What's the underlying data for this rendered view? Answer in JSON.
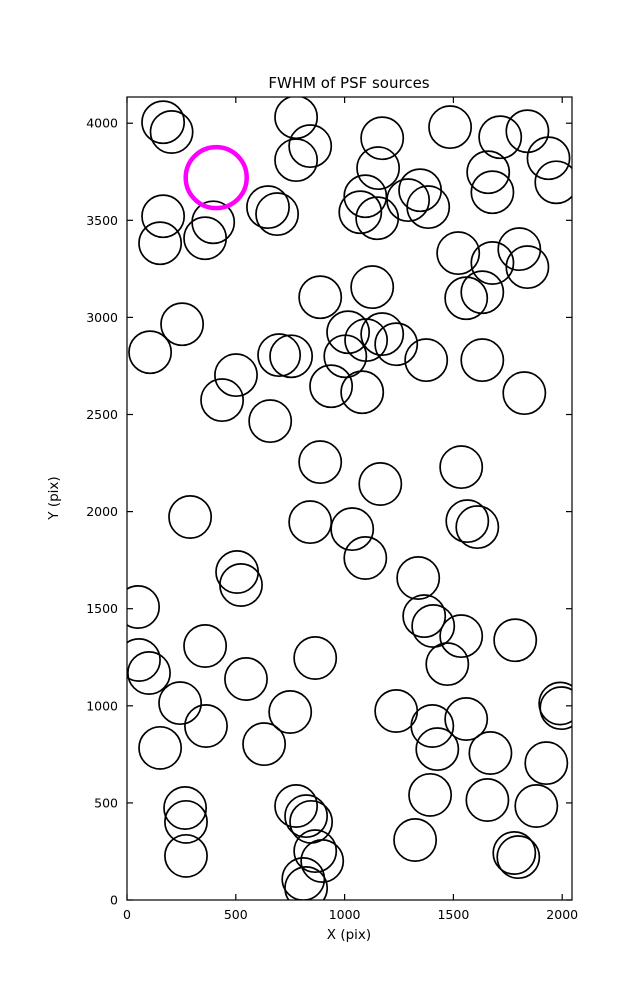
{
  "chart_data": {
    "type": "scatter",
    "title": "FWHM of PSF sources",
    "xlabel": "X (pix)",
    "ylabel": "Y (pix)",
    "xlim": [
      0,
      2045
    ],
    "ylim": [
      0,
      4135
    ],
    "xticks": [
      0,
      500,
      1000,
      1500,
      2000
    ],
    "yticks": [
      0,
      500,
      1000,
      1500,
      2000,
      2500,
      3000,
      3500,
      4000
    ],
    "grid": false,
    "legend": "none",
    "marker": "open-circle",
    "default_radius": 97,
    "colors": {
      "normal": "#000000",
      "highlight": "#ff00ff",
      "background": "#ffffff"
    },
    "highlight_point": {
      "x": 410,
      "y": 3720,
      "r": 140
    },
    "points": [
      {
        "x": 166,
        "y": 4005
      },
      {
        "x": 205,
        "y": 3955
      },
      {
        "x": 777,
        "y": 4031
      },
      {
        "x": 842,
        "y": 3882
      },
      {
        "x": 1173,
        "y": 3923
      },
      {
        "x": 1485,
        "y": 3980
      },
      {
        "x": 1715,
        "y": 3928
      },
      {
        "x": 1840,
        "y": 3959
      },
      {
        "x": 1937,
        "y": 3820
      },
      {
        "x": 777,
        "y": 3810
      },
      {
        "x": 1154,
        "y": 3769
      },
      {
        "x": 1347,
        "y": 3655
      },
      {
        "x": 1095,
        "y": 3624
      },
      {
        "x": 1660,
        "y": 3748
      },
      {
        "x": 1679,
        "y": 3645
      },
      {
        "x": 1973,
        "y": 3696
      },
      {
        "x": 648,
        "y": 3568
      },
      {
        "x": 690,
        "y": 3532
      },
      {
        "x": 166,
        "y": 3521
      },
      {
        "x": 396,
        "y": 3490
      },
      {
        "x": 152,
        "y": 3382
      },
      {
        "x": 359,
        "y": 3408
      },
      {
        "x": 1072,
        "y": 3542
      },
      {
        "x": 1150,
        "y": 3511
      },
      {
        "x": 1292,
        "y": 3604
      },
      {
        "x": 1384,
        "y": 3568
      },
      {
        "x": 1522,
        "y": 3331
      },
      {
        "x": 1679,
        "y": 3280
      },
      {
        "x": 1803,
        "y": 3352
      },
      {
        "x": 1840,
        "y": 3259
      },
      {
        "x": 1559,
        "y": 3099
      },
      {
        "x": 1633,
        "y": 3130
      },
      {
        "x": 888,
        "y": 3104
      },
      {
        "x": 1127,
        "y": 3156
      },
      {
        "x": 253,
        "y": 2965
      },
      {
        "x": 106,
        "y": 2821
      },
      {
        "x": 1016,
        "y": 2924
      },
      {
        "x": 1099,
        "y": 2883
      },
      {
        "x": 1173,
        "y": 2914
      },
      {
        "x": 1237,
        "y": 2862
      },
      {
        "x": 1003,
        "y": 2800
      },
      {
        "x": 699,
        "y": 2806
      },
      {
        "x": 754,
        "y": 2800
      },
      {
        "x": 501,
        "y": 2703
      },
      {
        "x": 1375,
        "y": 2780
      },
      {
        "x": 1633,
        "y": 2780
      },
      {
        "x": 938,
        "y": 2646
      },
      {
        "x": 1081,
        "y": 2615
      },
      {
        "x": 437,
        "y": 2574
      },
      {
        "x": 1826,
        "y": 2610
      },
      {
        "x": 658,
        "y": 2466
      },
      {
        "x": 888,
        "y": 2255
      },
      {
        "x": 1536,
        "y": 2229
      },
      {
        "x": 1164,
        "y": 2142
      },
      {
        "x": 290,
        "y": 1972
      },
      {
        "x": 842,
        "y": 1946
      },
      {
        "x": 1035,
        "y": 1910
      },
      {
        "x": 1564,
        "y": 1951
      },
      {
        "x": 1610,
        "y": 1920
      },
      {
        "x": 1095,
        "y": 1761
      },
      {
        "x": 506,
        "y": 1689
      },
      {
        "x": 524,
        "y": 1622
      },
      {
        "x": 1338,
        "y": 1658
      },
      {
        "x": 51,
        "y": 1509
      },
      {
        "x": 1366,
        "y": 1462
      },
      {
        "x": 1407,
        "y": 1411
      },
      {
        "x": 1536,
        "y": 1359
      },
      {
        "x": 359,
        "y": 1308
      },
      {
        "x": 1784,
        "y": 1338
      },
      {
        "x": 865,
        "y": 1246
      },
      {
        "x": 55,
        "y": 1236
      },
      {
        "x": 101,
        "y": 1169
      },
      {
        "x": 1472,
        "y": 1215
      },
      {
        "x": 547,
        "y": 1138
      },
      {
        "x": 244,
        "y": 1014
      },
      {
        "x": 750,
        "y": 968
      },
      {
        "x": 1237,
        "y": 973
      },
      {
        "x": 1403,
        "y": 896
      },
      {
        "x": 1991,
        "y": 1012
      },
      {
        "x": 1996,
        "y": 988
      },
      {
        "x": 1559,
        "y": 932
      },
      {
        "x": 363,
        "y": 896
      },
      {
        "x": 630,
        "y": 803
      },
      {
        "x": 152,
        "y": 783
      },
      {
        "x": 1426,
        "y": 777
      },
      {
        "x": 1670,
        "y": 757
      },
      {
        "x": 1927,
        "y": 705
      },
      {
        "x": 267,
        "y": 474
      },
      {
        "x": 271,
        "y": 402
      },
      {
        "x": 777,
        "y": 484
      },
      {
        "x": 823,
        "y": 432
      },
      {
        "x": 846,
        "y": 402
      },
      {
        "x": 1393,
        "y": 541
      },
      {
        "x": 1656,
        "y": 515
      },
      {
        "x": 1881,
        "y": 484
      },
      {
        "x": 271,
        "y": 227
      },
      {
        "x": 865,
        "y": 252
      },
      {
        "x": 897,
        "y": 201
      },
      {
        "x": 1324,
        "y": 309
      },
      {
        "x": 1780,
        "y": 242
      },
      {
        "x": 1798,
        "y": 221
      },
      {
        "x": 810,
        "y": 108
      },
      {
        "x": 823,
        "y": 62
      }
    ]
  }
}
